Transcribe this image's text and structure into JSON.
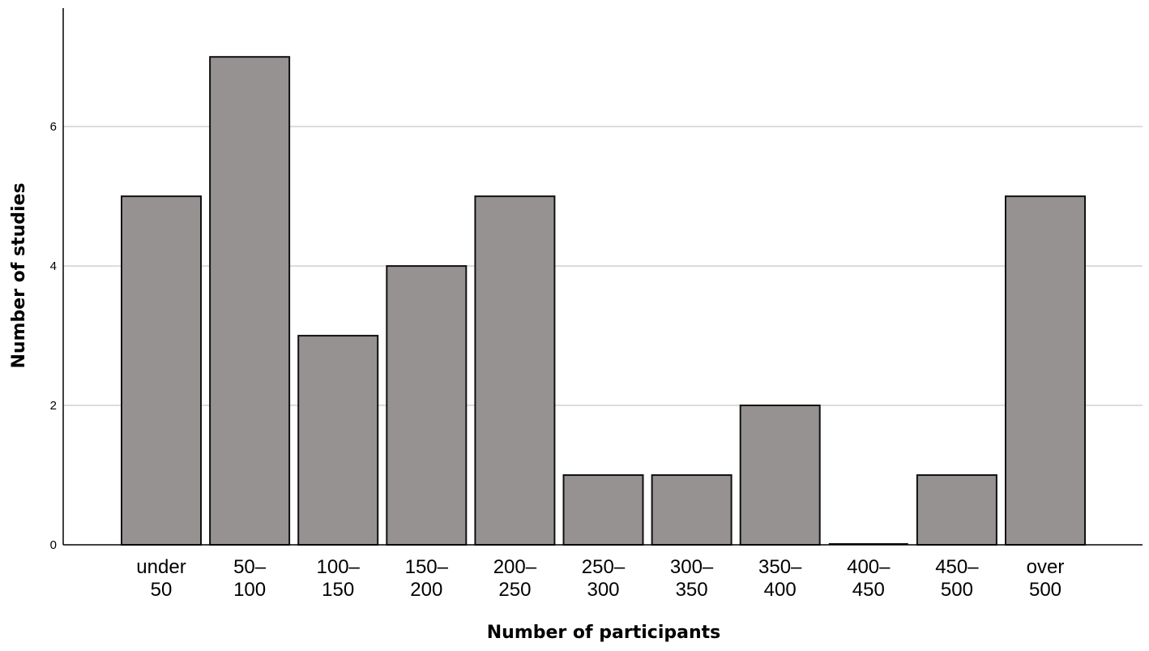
{
  "chart_data": {
    "type": "bar",
    "categories": [
      [
        "under",
        "50"
      ],
      [
        "50–",
        "100"
      ],
      [
        "100–",
        "150"
      ],
      [
        "150–",
        "200"
      ],
      [
        "200–",
        "250"
      ],
      [
        "250–",
        "300"
      ],
      [
        "300–",
        "350"
      ],
      [
        "350–",
        "400"
      ],
      [
        "400–",
        "450"
      ],
      [
        "450–",
        "500"
      ],
      [
        "over",
        "500"
      ]
    ],
    "values": [
      5,
      7,
      3,
      4,
      5,
      1,
      1,
      2,
      0,
      1,
      5
    ],
    "xlabel": "Number of participants",
    "ylabel": "Number of studies",
    "ylim": [
      0,
      7.7
    ],
    "yticks": [
      0,
      2,
      4,
      6
    ],
    "grid": "horizontal",
    "colors": {
      "bar_fill": "#959291",
      "bar_stroke": "#111111",
      "grid": "#d0d0d0",
      "axis": "#000000"
    }
  }
}
